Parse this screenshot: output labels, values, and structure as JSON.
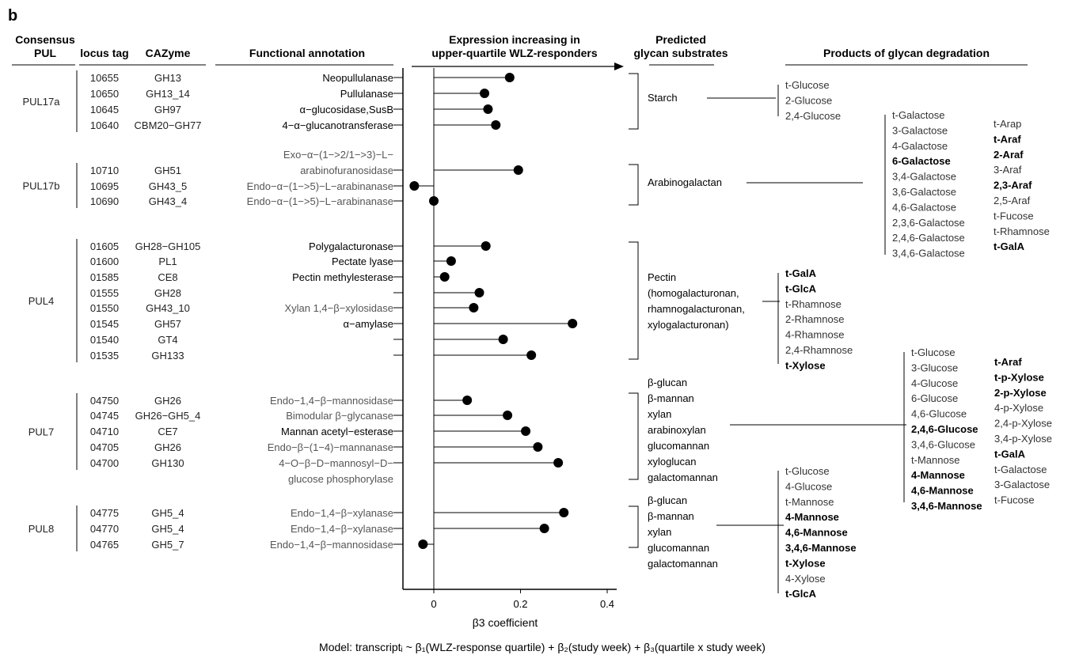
{
  "panel_letter": "b",
  "headers": {
    "pul_line1": "Consensus",
    "pul_line2": "PUL",
    "locus": "locus tag",
    "cazyme": "CAZyme",
    "annotation": "Functional annotation",
    "expr_line1": "Expression increasing in",
    "expr_line2": "upper-quartile WLZ-responders",
    "substrate_line1": "Predicted",
    "substrate_line2": "glycan substrates",
    "products": "Products of glycan degradation"
  },
  "rows": [
    {
      "locus": "10655",
      "cazyme": "GH13",
      "annotation": [
        "Neopullulanase"
      ],
      "ann_dark": true
    },
    {
      "locus": "10650",
      "cazyme": "GH13_14",
      "annotation": [
        "Pullulanase"
      ],
      "ann_dark": true
    },
    {
      "locus": "10645",
      "cazyme": "GH97",
      "annotation": [
        "α−glucosidase,SusB"
      ],
      "ann_dark": true
    },
    {
      "locus": "10640",
      "cazyme": "CBM20−GH77",
      "annotation": [
        "4−α−glucanotransferase"
      ],
      "ann_dark": true
    },
    {
      "locus": "10710",
      "cazyme": "GH51",
      "annotation": [
        "Exo−α−(1−>2/1−>3)−L−",
        "arabinofuranosidase"
      ],
      "ann_dark": false
    },
    {
      "locus": "10695",
      "cazyme": "GH43_5",
      "annotation": [
        "Endo−α−(1−>5)−L−arabinanase"
      ],
      "ann_dark": false
    },
    {
      "locus": "10690",
      "cazyme": "GH43_4",
      "annotation": [
        "Endo−α−(1−>5)−L−arabinanase"
      ],
      "ann_dark": false
    },
    {
      "locus": "01605",
      "cazyme": "GH28−GH105",
      "annotation": [
        "Polygalacturonase"
      ],
      "ann_dark": true
    },
    {
      "locus": "01600",
      "cazyme": "PL1",
      "annotation": [
        "Pectate lyase"
      ],
      "ann_dark": true
    },
    {
      "locus": "01585",
      "cazyme": "CE8",
      "annotation": [
        "Pectin methylesterase"
      ],
      "ann_dark": true
    },
    {
      "locus": "01555",
      "cazyme": "GH28",
      "annotation": [],
      "ann_dark": true
    },
    {
      "locus": "01550",
      "cazyme": "GH43_10",
      "annotation": [
        "Xylan 1,4−β−xylosidase"
      ],
      "ann_dark": false
    },
    {
      "locus": "01545",
      "cazyme": "GH57",
      "annotation": [
        "α−amylase"
      ],
      "ann_dark": true
    },
    {
      "locus": "01540",
      "cazyme": "GT4",
      "annotation": [],
      "ann_dark": true
    },
    {
      "locus": "01535",
      "cazyme": "GH133",
      "annotation": [],
      "ann_dark": true
    },
    {
      "locus": "04750",
      "cazyme": "GH26",
      "annotation": [
        "Endo−1,4−β−mannosidase"
      ],
      "ann_dark": false
    },
    {
      "locus": "04745",
      "cazyme": "GH26−GH5_4",
      "annotation": [
        "Bimodular β−glycanase"
      ],
      "ann_dark": false
    },
    {
      "locus": "04710",
      "cazyme": "CE7",
      "annotation": [
        "Mannan acetyl−esterase"
      ],
      "ann_dark": true
    },
    {
      "locus": "04705",
      "cazyme": "GH26",
      "annotation": [
        "Endo−β−(1−4)−mannanase"
      ],
      "ann_dark": false
    },
    {
      "locus": "04700",
      "cazyme": "GH130",
      "annotation": [
        "4−O−β−D−mannosyl−D−",
        "glucose phosphorylase"
      ],
      "ann_dark": false
    },
    {
      "locus": "04775",
      "cazyme": "GH5_4",
      "annotation": [
        "Endo−1,4−β−xylanase"
      ],
      "ann_dark": false
    },
    {
      "locus": "04770",
      "cazyme": "GH5_4",
      "annotation": [
        "Endo−1,4−β−xylanase"
      ],
      "ann_dark": false
    },
    {
      "locus": "04765",
      "cazyme": "GH5_7",
      "annotation": [
        "Endo−1,4−β−mannosidase"
      ],
      "ann_dark": false
    }
  ],
  "puls": [
    {
      "name": "PUL17a",
      "first": 0,
      "last": 3
    },
    {
      "name": "PUL17b",
      "first": 4,
      "last": 6
    },
    {
      "name": "PUL4",
      "first": 7,
      "last": 14
    },
    {
      "name": "PUL7",
      "first": 15,
      "last": 19
    },
    {
      "name": "PUL8",
      "first": 20,
      "last": 22
    }
  ],
  "chart_data": {
    "type": "lollipop",
    "xlabel": "β3 coefficient",
    "xlim": [
      -0.07,
      0.45
    ],
    "xticks": [
      0,
      0.2,
      0.4
    ],
    "xtick_labels": [
      "0",
      "0.2",
      "0.4"
    ],
    "categories": [
      "10655",
      "10650",
      "10645",
      "10640",
      "10710",
      "10695",
      "10690",
      "01605",
      "01600",
      "01585",
      "01555",
      "01550",
      "01545",
      "01540",
      "01535",
      "04750",
      "04745",
      "04710",
      "04705",
      "04700",
      "04775",
      "04770",
      "04765"
    ],
    "values": [
      0.175,
      0.117,
      0.125,
      0.143,
      0.195,
      -0.045,
      0.0,
      0.12,
      0.04,
      0.025,
      0.105,
      0.092,
      0.32,
      0.16,
      0.225,
      0.077,
      0.17,
      0.212,
      0.24,
      0.287,
      0.3,
      0.255,
      -0.025
    ],
    "grid": false
  },
  "substrates": [
    {
      "label": [
        "Starch"
      ]
    },
    {
      "label": [
        "Arabinogalactan"
      ]
    },
    {
      "label": [
        "Pectin",
        "(homogalacturonan,",
        "rhamnogalacturonan,",
        "xylogalacturonan)"
      ]
    },
    {
      "label": [
        "β-glucan",
        "β-mannan",
        "xylan",
        "arabinoxylan",
        "glucomannan",
        "xyloglucan",
        "galactomannan"
      ]
    },
    {
      "label": [
        "β-glucan",
        "β-mannan",
        "xylan",
        "glucomannan",
        "galactomannan"
      ]
    }
  ],
  "products": [
    {
      "columns": [
        [
          {
            "t": "t-Glucose",
            "b": false
          },
          {
            "t": "2-Glucose",
            "b": false
          },
          {
            "t": "2,4-Glucose",
            "b": false
          }
        ]
      ]
    },
    {
      "columns": [
        [
          {
            "t": "t-Galactose",
            "b": false
          },
          {
            "t": "3-Galactose",
            "b": false
          },
          {
            "t": "4-Galactose",
            "b": false
          },
          {
            "t": "6-Galactose",
            "b": true
          },
          {
            "t": "3,4-Galactose",
            "b": false
          },
          {
            "t": "3,6-Galactose",
            "b": false
          },
          {
            "t": "4,6-Galactose",
            "b": false
          },
          {
            "t": "2,3,6-Galactose",
            "b": false
          },
          {
            "t": "2,4,6-Galactose",
            "b": false
          },
          {
            "t": "3,4,6-Galactose",
            "b": false
          }
        ],
        [
          {
            "t": "t-Arap",
            "b": false
          },
          {
            "t": "t-Araf",
            "b": true
          },
          {
            "t": "2-Araf",
            "b": true
          },
          {
            "t": "3-Araf",
            "b": false
          },
          {
            "t": "2,3-Araf",
            "b": true
          },
          {
            "t": "2,5-Araf",
            "b": false
          },
          {
            "t": "t-Fucose",
            "b": false
          },
          {
            "t": "t-Rhamnose",
            "b": false
          },
          {
            "t": "t-GalA",
            "b": true
          }
        ]
      ]
    },
    {
      "columns": [
        [
          {
            "t": "t-GalA",
            "b": true
          },
          {
            "t": "t-GlcA",
            "b": true
          },
          {
            "t": "t-Rhamnose",
            "b": false
          },
          {
            "t": "2-Rhamnose",
            "b": false
          },
          {
            "t": "4-Rhamnose",
            "b": false
          },
          {
            "t": "2,4-Rhamnose",
            "b": false
          },
          {
            "t": "t-Xylose",
            "b": true
          }
        ]
      ]
    },
    {
      "columns": [
        [
          {
            "t": "t-Glucose",
            "b": false
          },
          {
            "t": "3-Glucose",
            "b": false
          },
          {
            "t": "4-Glucose",
            "b": false
          },
          {
            "t": "6-Glucose",
            "b": false
          },
          {
            "t": "4,6-Glucose",
            "b": false
          },
          {
            "t": "2,4,6-Glucose",
            "b": true
          },
          {
            "t": "3,4,6-Glucose",
            "b": false
          },
          {
            "t": "t-Mannose",
            "b": false
          },
          {
            "t": "4-Mannose",
            "b": true
          },
          {
            "t": "4,6-Mannose",
            "b": true
          },
          {
            "t": "3,4,6-Mannose",
            "b": true
          }
        ],
        [
          {
            "t": "t-Araf",
            "b": true
          },
          {
            "t": "t-p-Xylose",
            "b": true
          },
          {
            "t": "2-p-Xylose",
            "b": true
          },
          {
            "t": "4-p-Xylose",
            "b": false
          },
          {
            "t": "2,4-p-Xylose",
            "b": false
          },
          {
            "t": "3,4-p-Xylose",
            "b": false
          },
          {
            "t": "t-GalA",
            "b": true
          },
          {
            "t": "t-Galactose",
            "b": false
          },
          {
            "t": "3-Galactose",
            "b": false
          },
          {
            "t": "t-Fucose",
            "b": false
          }
        ]
      ]
    },
    {
      "columns": [
        [
          {
            "t": "t-Glucose",
            "b": false
          },
          {
            "t": "4-Glucose",
            "b": false
          },
          {
            "t": "t-Mannose",
            "b": false
          },
          {
            "t": "4-Mannose",
            "b": true
          },
          {
            "t": "4,6-Mannose",
            "b": true
          },
          {
            "t": "3,4,6-Mannose",
            "b": true
          },
          {
            "t": "t-Xylose",
            "b": true
          },
          {
            "t": "4-Xylose",
            "b": false
          },
          {
            "t": "t-GlcA",
            "b": true
          }
        ]
      ]
    }
  ],
  "model_caption": "Model: transcriptᵢ ~ β₁(WLZ-response quartile) + β₂(study week) + β₃(quartile x study week)"
}
